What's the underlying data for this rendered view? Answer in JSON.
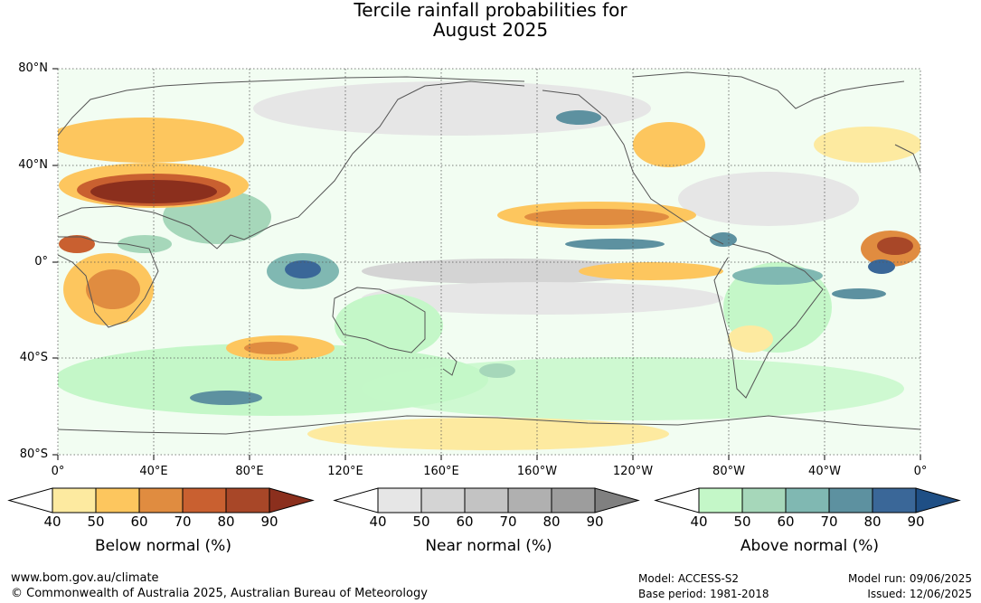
{
  "title": {
    "line1": "Tercile rainfall probabilities for",
    "line2": "August 2025"
  },
  "axes": {
    "lat_labels": [
      "80°N",
      "40°N",
      "0°",
      "40°S",
      "80°S"
    ],
    "lon_labels": [
      "0°",
      "40°E",
      "80°E",
      "120°E",
      "160°E",
      "160°W",
      "120°W",
      "80°W",
      "40°W",
      "0°"
    ]
  },
  "legends": [
    {
      "title": "Below normal (%)",
      "ticks": [
        "40",
        "50",
        "60",
        "70",
        "80",
        "90"
      ],
      "colors": [
        "#ffffff",
        "#fdeaa0",
        "#fdc65e",
        "#e08c40",
        "#c96030",
        "#a84728",
        "#8b2f1d"
      ]
    },
    {
      "title": "Near normal (%)",
      "ticks": [
        "40",
        "50",
        "60",
        "70",
        "80",
        "90"
      ],
      "colors": [
        "#ffffff",
        "#e6e6e6",
        "#d4d4d4",
        "#c3c3c3",
        "#b0b0b0",
        "#9d9d9d",
        "#808080"
      ]
    },
    {
      "title": "Above normal (%)",
      "ticks": [
        "40",
        "50",
        "60",
        "70",
        "80",
        "90"
      ],
      "colors": [
        "#ffffff",
        "#c4f7c8",
        "#a6d7ba",
        "#80b8b2",
        "#5d91a0",
        "#3a6798",
        "#1f4f85"
      ]
    }
  ],
  "footer": {
    "url": "www.bom.gov.au/climate",
    "copyright": "© Commonwealth of Australia 2025, Australian Bureau of Meteorology",
    "model": "Model: ACCESS-S2",
    "base_period": "Base period: 1981-2018",
    "model_run": "Model run: 09/06/2025",
    "issued": "Issued: 12/06/2025"
  }
}
